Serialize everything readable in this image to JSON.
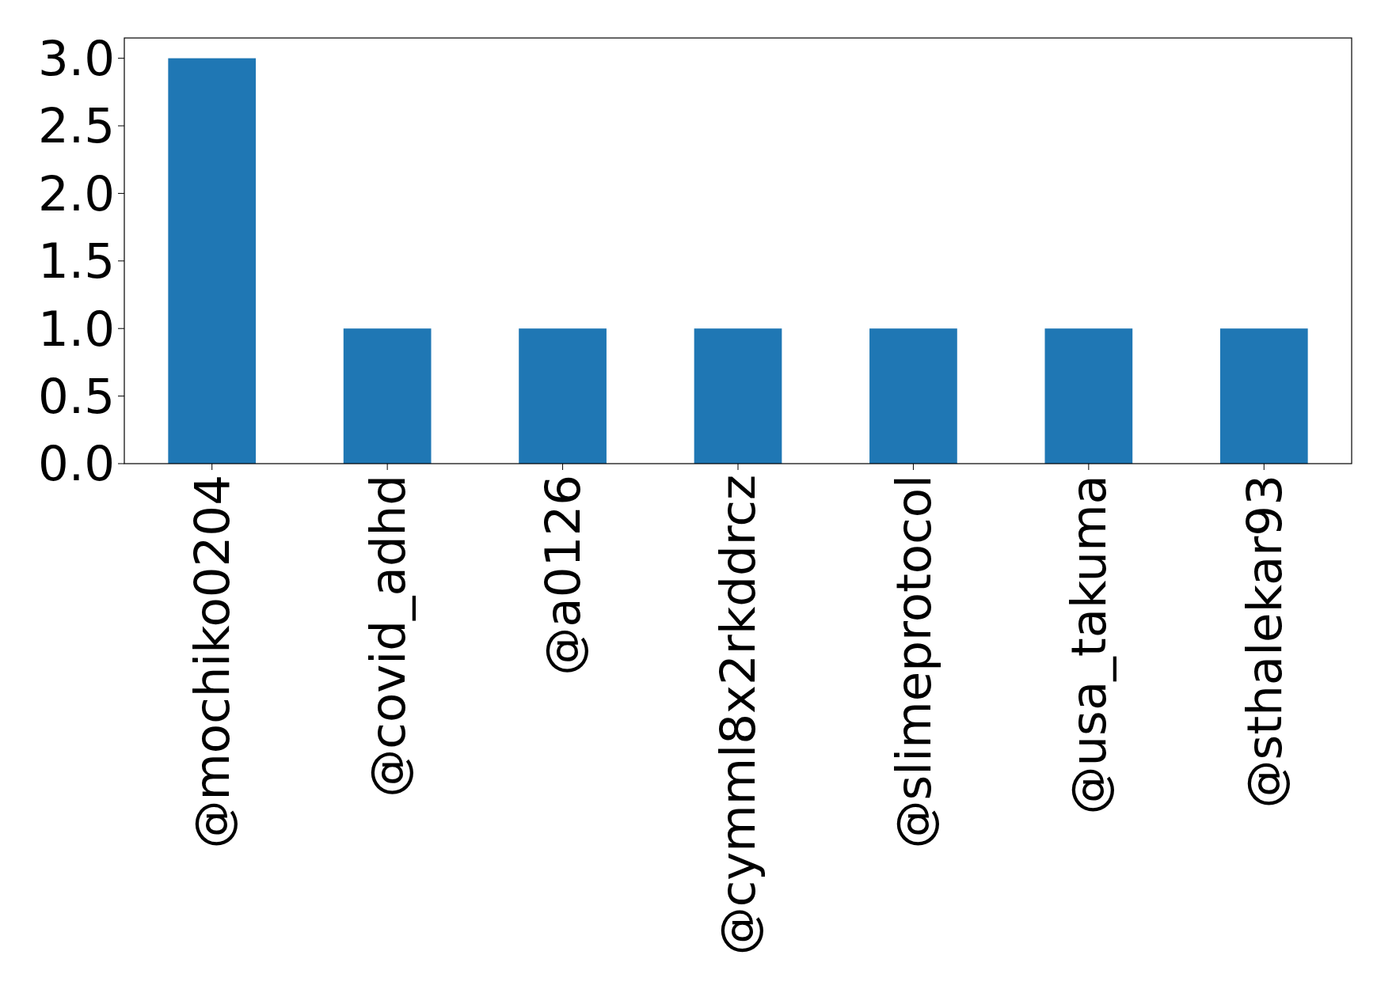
{
  "chart_data": {
    "type": "bar",
    "categories": [
      "@mochiko0204",
      "@covid_adhd",
      "@a0126",
      "@cymml8x2rkddrcz",
      "@slimeprotocol",
      "@usa_takuma",
      "@sthalekar93"
    ],
    "values": [
      3,
      1,
      1,
      1,
      1,
      1,
      1
    ],
    "color": "#1f77b4",
    "ylim": [
      0,
      3.15
    ],
    "yticks": [
      {
        "value": 0,
        "label": "0.0"
      },
      {
        "value": 0.5,
        "label": "0.5"
      },
      {
        "value": 1,
        "label": "1.0"
      },
      {
        "value": 1.5,
        "label": "1.5"
      },
      {
        "value": 2,
        "label": "2.0"
      },
      {
        "value": 2.5,
        "label": "2.5"
      },
      {
        "value": 3,
        "label": "3.0"
      }
    ]
  }
}
